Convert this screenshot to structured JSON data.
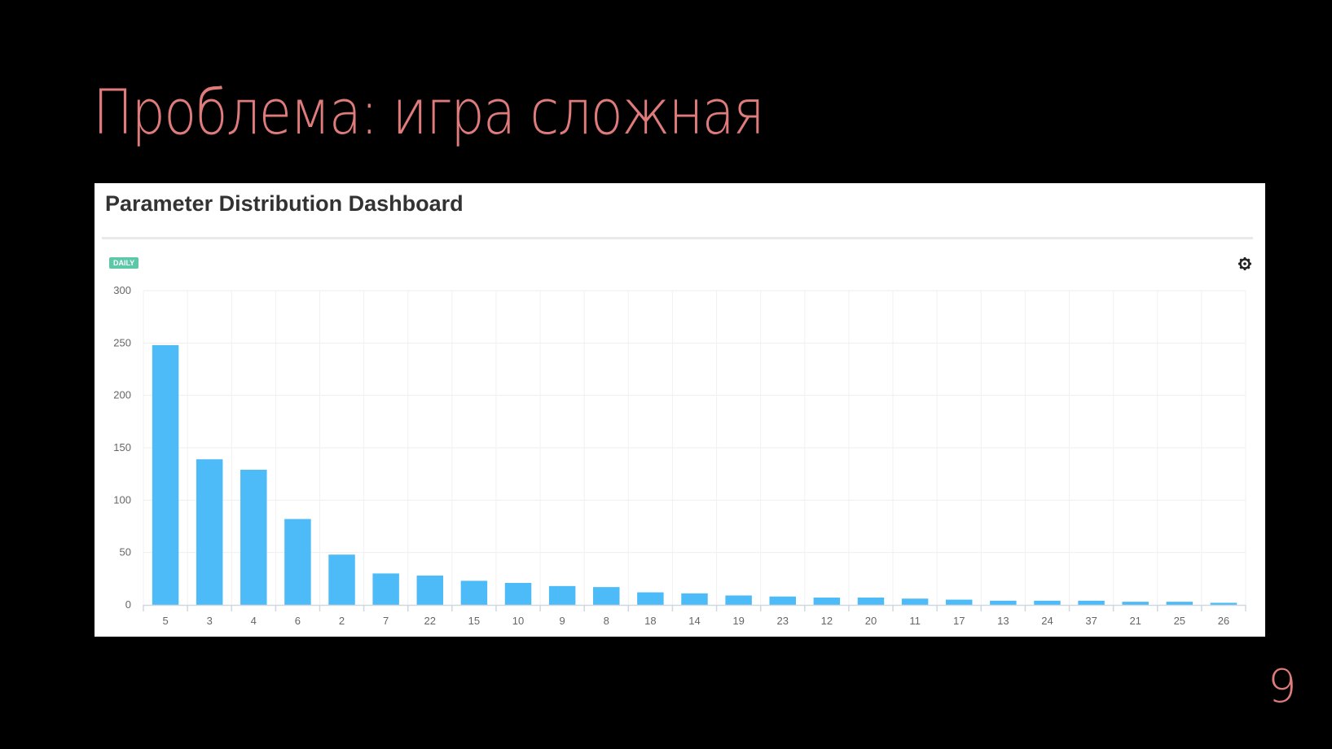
{
  "slide": {
    "title": "Проблема: игра сложная",
    "page_number": "9",
    "title_color": "#e07b7b"
  },
  "panel": {
    "title": "Parameter Distribution Dashboard",
    "badge": "DAILY",
    "badge_color": "#5cc8a8",
    "settings_icon": "gear-icon"
  },
  "chart_data": {
    "type": "bar",
    "title": "",
    "xlabel": "",
    "ylabel": "",
    "categories": [
      "5",
      "3",
      "4",
      "6",
      "2",
      "7",
      "22",
      "15",
      "10",
      "9",
      "8",
      "18",
      "14",
      "19",
      "23",
      "12",
      "20",
      "11",
      "17",
      "13",
      "24",
      "37",
      "21",
      "25",
      "26"
    ],
    "values": [
      248,
      139,
      129,
      82,
      48,
      30,
      28,
      23,
      21,
      18,
      17,
      12,
      11,
      9,
      8,
      7,
      7,
      6,
      5,
      4,
      4,
      4,
      3,
      3,
      2
    ],
    "ylim": [
      0,
      300
    ],
    "yticks": [
      0,
      50,
      100,
      150,
      200,
      250,
      300
    ],
    "bar_color": "#4dbbf7",
    "grid": true,
    "legend": "none"
  }
}
